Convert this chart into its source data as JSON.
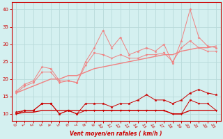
{
  "title": "",
  "xlabel": "Vent moyen/en rafales ( km/h )",
  "x": [
    0,
    1,
    2,
    3,
    4,
    5,
    6,
    7,
    8,
    9,
    10,
    11,
    12,
    13,
    14,
    15,
    16,
    17,
    18,
    19,
    20,
    21,
    22,
    23
  ],
  "line1": [
    16.5,
    18.5,
    19.5,
    23.5,
    23.0,
    19.5,
    19.5,
    19.0,
    25.0,
    29.0,
    34.0,
    29.0,
    32.0,
    27.0,
    28.0,
    29.0,
    28.0,
    30.0,
    24.5,
    31.0,
    40.0,
    32.0,
    29.5,
    29.0
  ],
  "line2": [
    16.0,
    18.0,
    19.0,
    22.0,
    22.0,
    19.0,
    19.5,
    19.0,
    24.0,
    27.5,
    27.0,
    26.0,
    27.0,
    26.0,
    26.0,
    27.0,
    27.0,
    27.5,
    25.0,
    29.0,
    31.0,
    29.0,
    28.0,
    28.0
  ],
  "line3": [
    16.0,
    17.0,
    18.0,
    19.0,
    20.0,
    20.0,
    21.0,
    21.0,
    22.0,
    23.0,
    23.5,
    24.0,
    24.5,
    25.0,
    25.5,
    26.0,
    26.5,
    27.0,
    27.0,
    28.0,
    28.5,
    29.0,
    29.0,
    29.5
  ],
  "line4": [
    10.5,
    11.0,
    11.0,
    13.0,
    13.0,
    10.0,
    11.0,
    10.0,
    13.0,
    13.0,
    13.0,
    12.0,
    13.0,
    13.0,
    14.0,
    15.5,
    14.0,
    14.0,
    13.0,
    14.0,
    16.0,
    17.0,
    16.0,
    15.5
  ],
  "line5": [
    10.0,
    11.0,
    11.0,
    13.0,
    13.0,
    10.0,
    11.0,
    10.0,
    11.0,
    11.0,
    11.0,
    11.0,
    11.0,
    11.0,
    11.0,
    11.0,
    11.0,
    11.0,
    10.0,
    10.0,
    14.0,
    13.0,
    13.0,
    11.0
  ],
  "line6": [
    10.0,
    10.5,
    10.5,
    11.0,
    11.0,
    11.0,
    11.0,
    11.0,
    11.0,
    11.0,
    11.0,
    11.0,
    11.0,
    11.0,
    11.0,
    11.0,
    11.0,
    11.0,
    10.0,
    10.0,
    11.0,
    11.0,
    11.0,
    11.0
  ],
  "color_light": "#f08080",
  "color_dark": "#cc0000",
  "bg_color": "#d4f0f0",
  "grid_color": "#b8dada",
  "ylim": [
    8,
    42
  ],
  "yticks": [
    10,
    15,
    20,
    25,
    30,
    35,
    40
  ],
  "xticks": [
    0,
    1,
    2,
    3,
    4,
    5,
    6,
    7,
    8,
    9,
    10,
    11,
    12,
    13,
    14,
    15,
    16,
    17,
    18,
    19,
    20,
    21,
    22,
    23
  ]
}
